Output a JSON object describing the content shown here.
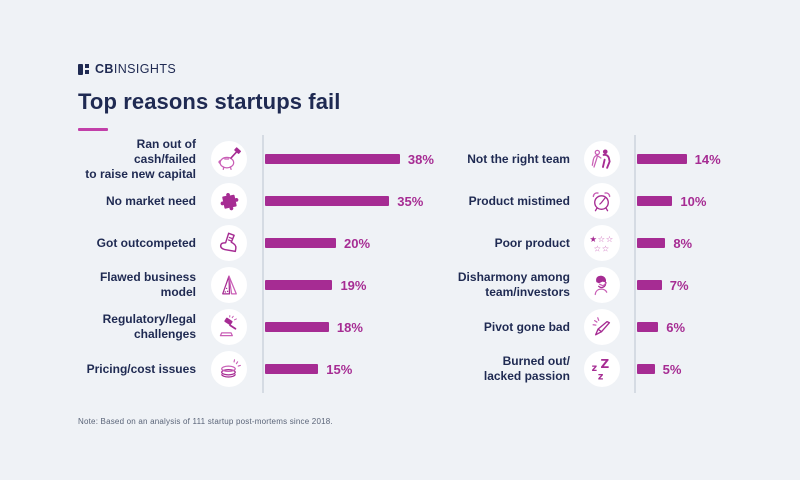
{
  "header": {
    "logo_bold": "CB",
    "logo_light": "INSIGHTS",
    "title": "Top reasons startups fail"
  },
  "note": {
    "text": "Note: Based on an analysis of 111 startup post-mortems since 2018."
  },
  "colors": {
    "background": "#EFF2F6",
    "bar": "#A62C93",
    "bar_light": "#C95FB6",
    "heading": "#1F2A52",
    "axis": "#D5DBE3",
    "note_text": "#5A6478"
  },
  "chart_data": {
    "type": "bar",
    "orientation": "horizontal",
    "title": "Top reasons startups fail",
    "unit": "%",
    "value_range": [
      0,
      40
    ],
    "grid": false,
    "legend": false,
    "columns": [
      {
        "rows": [
          {
            "label": "Ran out of cash/failed\nto raise new capital",
            "icon": "piggy-bank-hammer-icon",
            "value": 38
          },
          {
            "label": "No market need",
            "icon": "puzzle-piece-icon",
            "value": 35
          },
          {
            "label": "Got outcompeted",
            "icon": "kicking-boot-icon",
            "value": 20
          },
          {
            "label": "Flawed business model",
            "icon": "folded-card-icon",
            "value": 19
          },
          {
            "label": "Regulatory/legal\nchallenges",
            "icon": "gavel-icon",
            "value": 18
          },
          {
            "label": "Pricing/cost issues",
            "icon": "coin-stack-icon",
            "value": 15
          }
        ]
      },
      {
        "rows": [
          {
            "label": "Not the right team",
            "icon": "team-people-icon",
            "value": 14
          },
          {
            "label": "Product mistimed",
            "icon": "alarm-clock-icon",
            "value": 10
          },
          {
            "label": "Poor product",
            "icon": "star-rating-icon",
            "value": 8
          },
          {
            "label": "Disharmony among\nteam/investors",
            "icon": "facepalm-icon",
            "value": 7
          },
          {
            "label": "Pivot gone bad",
            "icon": "crashed-dart-icon",
            "value": 6
          },
          {
            "label": "Burned out/\nlacked passion",
            "icon": "zzz-sleep-icon",
            "value": 5
          }
        ]
      }
    ]
  }
}
